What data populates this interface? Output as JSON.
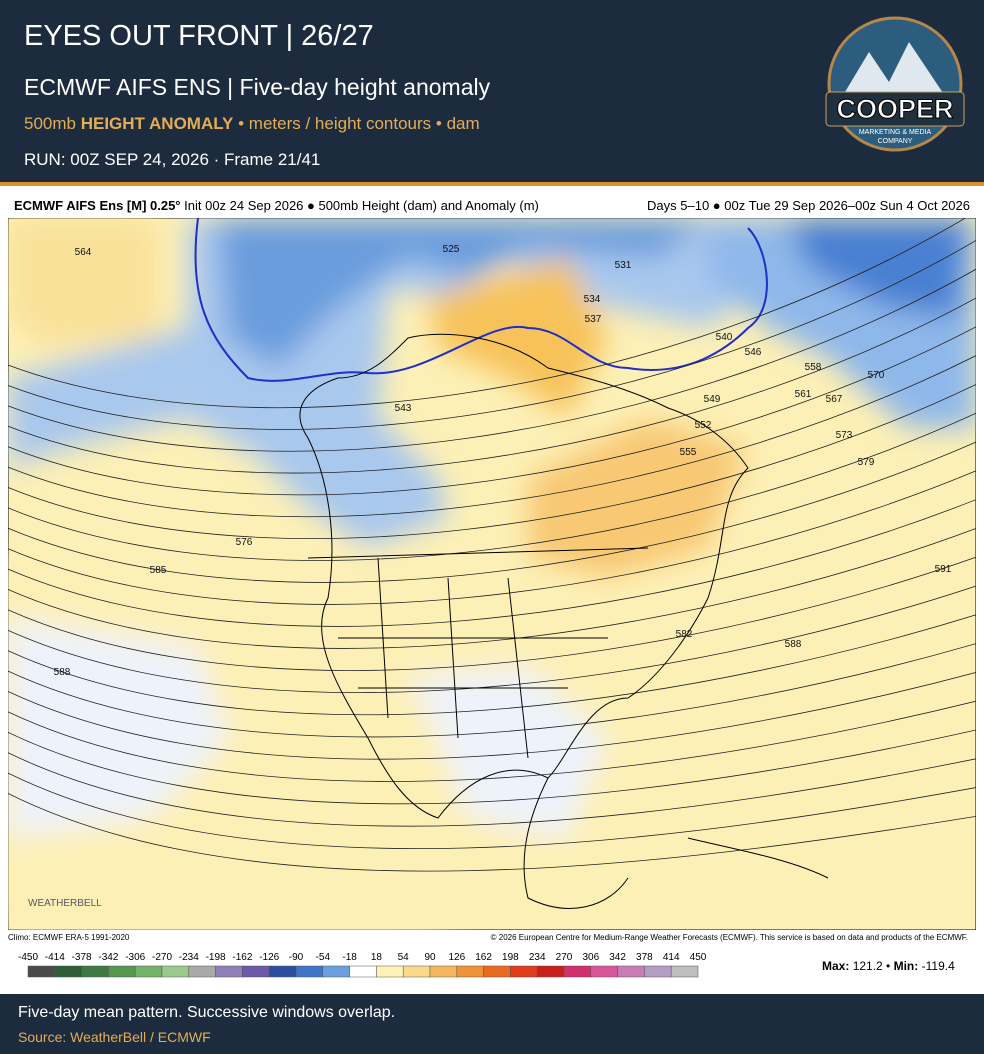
{
  "header": {
    "title": "EYES OUT FRONT | 26/27",
    "subtitle": "ECMWF AIFS ENS | Five-day height anomaly",
    "product": [
      "500mb ",
      "HEIGHT ANOMALY",
      " • meters / height contours • dam"
    ],
    "run": "RUN: 00Z SEP 24, 2026 · Frame 21/41",
    "logo": [
      "COOPER",
      "MARKETING & MEDIA",
      "COMPANY"
    ]
  },
  "map": {
    "model": "ECMWF AIFS Ens [M] 0.25°",
    "description": "Init 00z 24 Sep 2026 ● 500mb Height (dam) and Anomaly (m)",
    "valid": "Days 5–10 ● 00z Tue 29 Sep 2026–00z Sun 4 Oct 2026",
    "watermark": "WEATHERBELL",
    "contour_labels": [
      564,
      576,
      585,
      588,
      543,
      525,
      531,
      534,
      537,
      540,
      546,
      549,
      552,
      555,
      558,
      561,
      567,
      570,
      573,
      579,
      582,
      588,
      591
    ],
    "climo": "Climo: ECMWF ERA-5 1991-2020",
    "copyright": "© 2026 European Centre for Medium-Range Weather Forecasts (ECMWF). This service is based on data and products of the ECMWF.",
    "colorbar": {
      "ticks": [
        -450,
        -414,
        -378,
        -342,
        -306,
        -270,
        -234,
        -198,
        -162,
        -126,
        -90,
        -54,
        -18,
        18,
        54,
        90,
        126,
        162,
        198,
        234,
        270,
        306,
        342,
        378,
        414,
        450
      ],
      "colors": [
        "#4a4a4a",
        "#2f5e36",
        "#3d7a43",
        "#55994f",
        "#76b36a",
        "#9cc98c",
        "#a9a9a9",
        "#8e7fb8",
        "#6c5aa8",
        "#2b4f9e",
        "#3f74c8",
        "#6a9fe0",
        "#ffffff",
        "#fdf3b8",
        "#fbd98a",
        "#f6b65c",
        "#f19237",
        "#ea6a22",
        "#df3d1b",
        "#c81e1e",
        "#d2306b",
        "#d9569a",
        "#c77cb6",
        "#b49cc4",
        "#bfbfbf"
      ]
    },
    "max_label": "Max",
    "max": 121.2,
    "min_label": "Min",
    "min": -119.4
  },
  "footer": {
    "note": "Five-day mean pattern. Successive windows overlap.",
    "source": "Source: WeatherBell / ECMWF"
  }
}
